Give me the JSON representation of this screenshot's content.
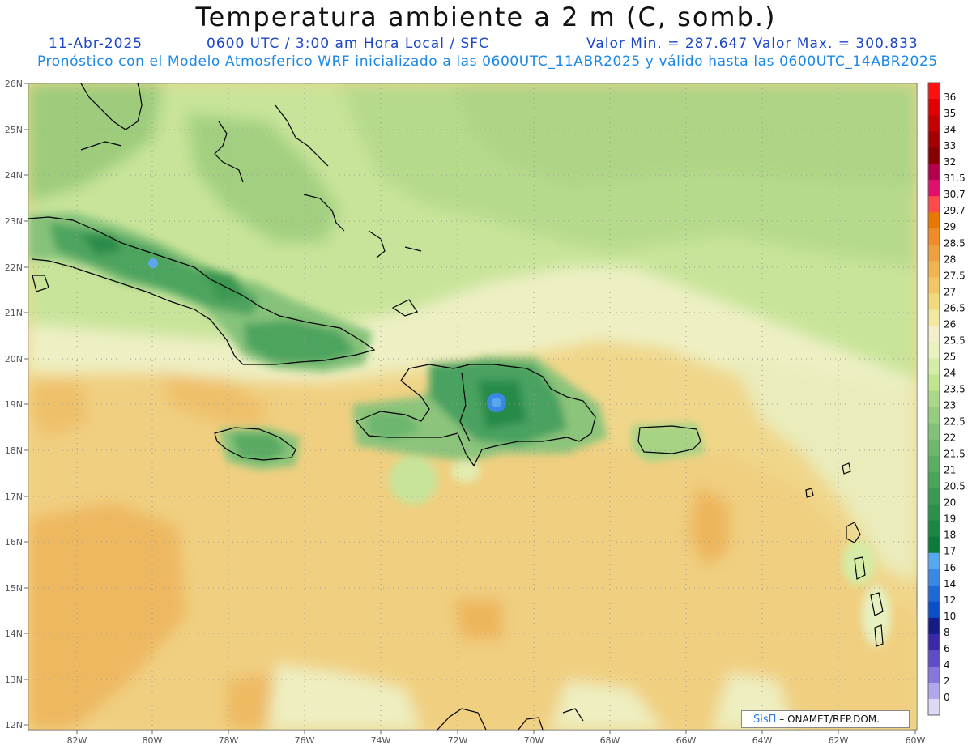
{
  "header": {
    "title": "Temperatura ambiente a 2 m (C, somb.)",
    "date": "11-Abr-2025",
    "time": "0600 UTC / 3:00 am Hora Local / SFC",
    "minmax": "Valor Min. = 287.647  Valor Max. = 300.833",
    "model": "Pronóstico con el Modelo Atmosferico WRF inicializado a las 0600UTC_11ABR2025 y válido hasta las  0600UTC_14ABR2025"
  },
  "map": {
    "lat_labels": [
      "26N",
      "25N",
      "24N",
      "23N",
      "22N",
      "21N",
      "20N",
      "19N",
      "18N",
      "17N",
      "16N",
      "15N",
      "14N",
      "13N",
      "12N"
    ],
    "lon_labels": [
      "82W",
      "80W",
      "78W",
      "76W",
      "74W",
      "72W",
      "70W",
      "68W",
      "66W",
      "64W",
      "62W",
      "60W"
    ],
    "grid": true
  },
  "colorbar": {
    "levels": [
      {
        "label": "36",
        "color": "#ff1010"
      },
      {
        "label": "35",
        "color": "#e00000"
      },
      {
        "label": "34",
        "color": "#c40000"
      },
      {
        "label": "33",
        "color": "#a50000"
      },
      {
        "label": "32",
        "color": "#880000"
      },
      {
        "label": "31.5",
        "color": "#b4004c"
      },
      {
        "label": "30.7",
        "color": "#e0106c"
      },
      {
        "label": "29.7",
        "color": "#ff4a4a"
      },
      {
        "label": "29",
        "color": "#e87800"
      },
      {
        "label": "28.5",
        "color": "#f08c28"
      },
      {
        "label": "28",
        "color": "#eea040"
      },
      {
        "label": "27.5",
        "color": "#f0b450"
      },
      {
        "label": "27",
        "color": "#f2c666"
      },
      {
        "label": "26.5",
        "color": "#f2d87e"
      },
      {
        "label": "26",
        "color": "#f2e8a0"
      },
      {
        "label": "25.5",
        "color": "#f2f0cc"
      },
      {
        "label": "25",
        "color": "#e8f2c0"
      },
      {
        "label": "24",
        "color": "#d4eca6"
      },
      {
        "label": "23.5",
        "color": "#c0e490"
      },
      {
        "label": "23",
        "color": "#aad888"
      },
      {
        "label": "22.5",
        "color": "#96cc80"
      },
      {
        "label": "22",
        "color": "#82c278"
      },
      {
        "label": "21.5",
        "color": "#6eb86c"
      },
      {
        "label": "21",
        "color": "#5cae62"
      },
      {
        "label": "20.5",
        "color": "#4aa45a"
      },
      {
        "label": "20",
        "color": "#3a9a52"
      },
      {
        "label": "19",
        "color": "#2a904a"
      },
      {
        "label": "18",
        "color": "#1a8642"
      },
      {
        "label": "17",
        "color": "#0c7a38"
      },
      {
        "label": "16",
        "color": "#58a8f0"
      },
      {
        "label": "14",
        "color": "#3a88e6"
      },
      {
        "label": "12",
        "color": "#1e68d8"
      },
      {
        "label": "10",
        "color": "#0a4ec8"
      },
      {
        "label": "8",
        "color": "#141c86"
      },
      {
        "label": "6",
        "color": "#3a2aaa"
      },
      {
        "label": "4",
        "color": "#5f4dc8"
      },
      {
        "label": "2",
        "color": "#8677dc"
      },
      {
        "label": "0",
        "color": "#b0a8ec"
      },
      {
        "label": "",
        "color": "#dcd8f6"
      }
    ]
  },
  "credit": {
    "brand": "SisΠ",
    "text": "– ONAMET/REP.DOM."
  }
}
